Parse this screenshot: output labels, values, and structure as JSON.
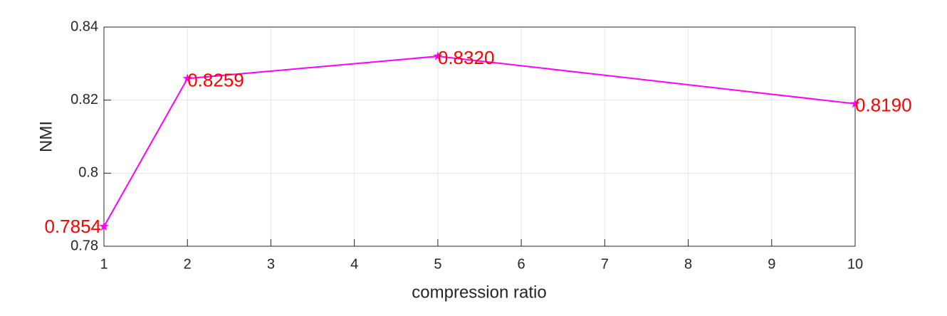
{
  "chart_data": {
    "type": "line",
    "x_label": "compression ratio",
    "y_label": "NMI",
    "x": [
      1,
      2,
      5,
      10
    ],
    "series": [
      {
        "name": "NMI",
        "color": "#ff00ff",
        "values": [
          0.7854,
          0.8259,
          0.832,
          0.819
        ],
        "value_labels": [
          "0.7854",
          "0.8259",
          "0.8320",
          "0.8190"
        ],
        "value_label_color": "#ff0000",
        "marker": "star"
      }
    ],
    "xlim": [
      1,
      10
    ],
    "xticks": [
      1,
      2,
      3,
      4,
      5,
      6,
      7,
      8,
      9,
      10
    ],
    "ylim": [
      0.78,
      0.84
    ],
    "yticks": [
      0.78,
      0.8,
      0.82,
      0.84
    ],
    "grid": true,
    "legend": false
  }
}
